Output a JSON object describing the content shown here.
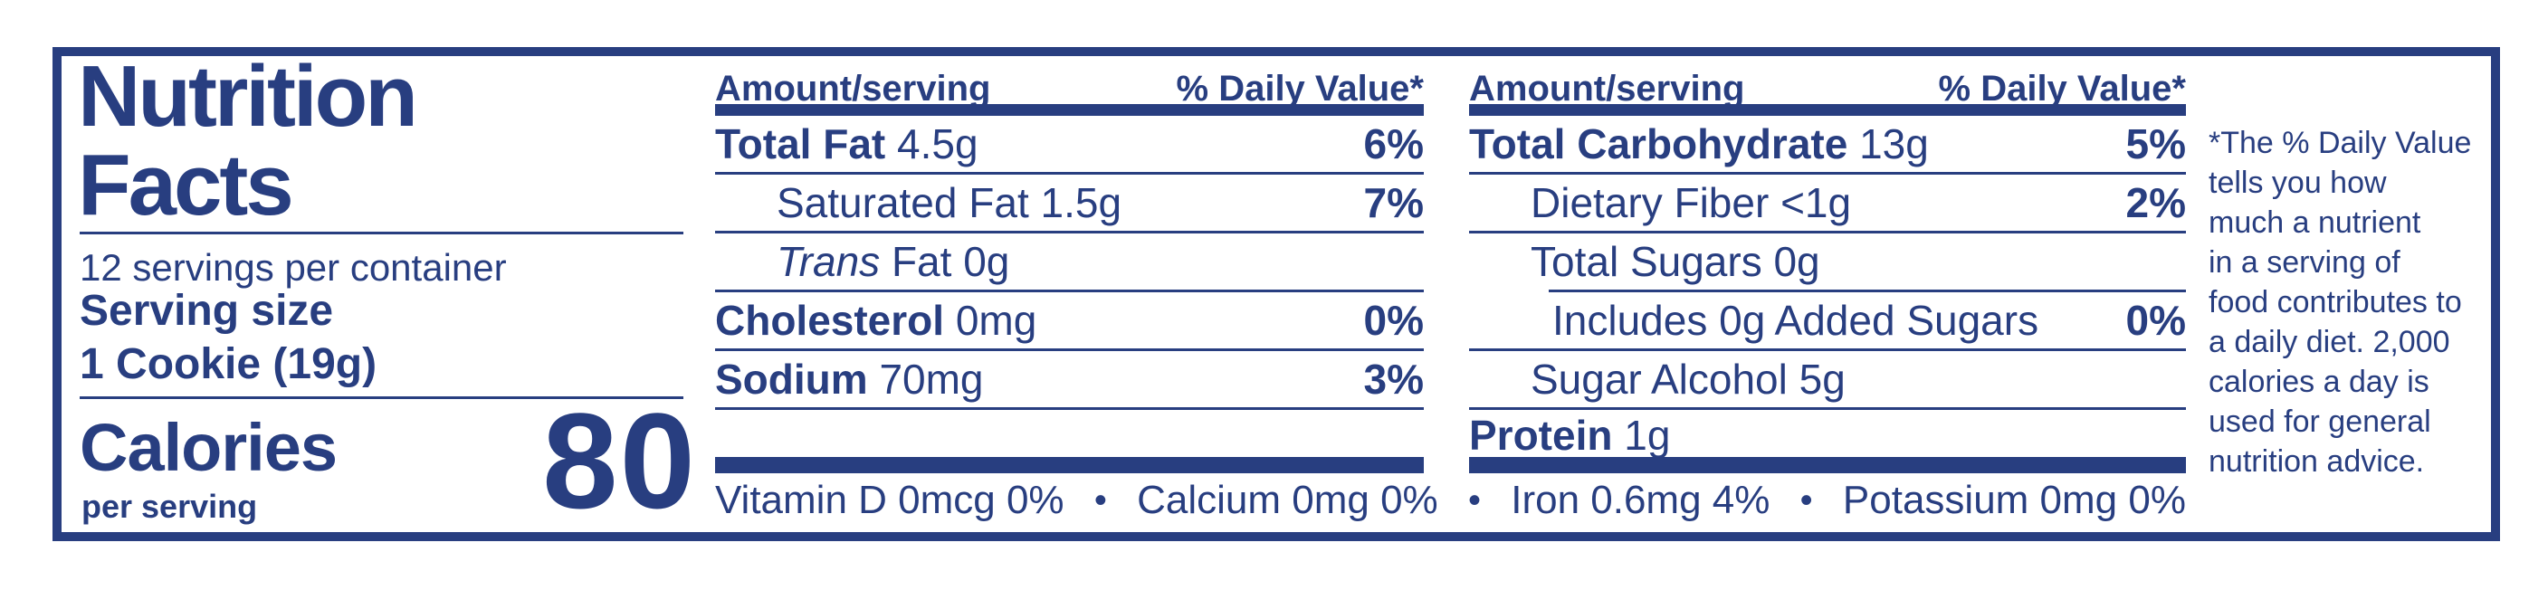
{
  "colors": {
    "navy": "#283e80",
    "background": "#ffffff"
  },
  "label": {
    "title_line1": "Nutrition",
    "title_line2": "Facts",
    "servings_per_container": "12 servings per container",
    "serving_size_label": "Serving size",
    "serving_size_value": "1 Cookie (19g)",
    "calories_label": "Calories",
    "calories_sublabel": "per serving",
    "calories_value": "80"
  },
  "columns": [
    {
      "header_amount": "Amount/serving",
      "header_dv": "% Daily Value*",
      "rows": [
        {
          "parts": [
            {
              "text": "Total Fat",
              "bold": true
            },
            {
              "text": " 4.5g"
            }
          ],
          "dv": "6%",
          "indent": 0,
          "sep": "full"
        },
        {
          "parts": [
            {
              "text": "Saturated Fat 1.5g"
            }
          ],
          "dv": "7%",
          "indent": 1,
          "sep": "full"
        },
        {
          "parts": [
            {
              "text": "Trans",
              "italic": true
            },
            {
              "text": " Fat 0g"
            }
          ],
          "dv": "",
          "indent": 1,
          "sep": "full"
        },
        {
          "parts": [
            {
              "text": "Cholesterol",
              "bold": true
            },
            {
              "text": " 0mg"
            }
          ],
          "dv": "0%",
          "indent": 0,
          "sep": "full"
        },
        {
          "parts": [
            {
              "text": "Sodium",
              "bold": true
            },
            {
              "text": " 70mg"
            }
          ],
          "dv": "3%",
          "indent": 0,
          "sep": "full"
        }
      ]
    },
    {
      "header_amount": "Amount/serving",
      "header_dv": "% Daily Value*",
      "rows": [
        {
          "parts": [
            {
              "text": "Total Carbohydrate",
              "bold": true
            },
            {
              "text": " 13g"
            }
          ],
          "dv": "5%",
          "indent": 0,
          "sep": "full"
        },
        {
          "parts": [
            {
              "text": "Dietary Fiber <1g"
            }
          ],
          "dv": "2%",
          "indent": 1,
          "sep": "full"
        },
        {
          "parts": [
            {
              "text": "Total Sugars 0g"
            }
          ],
          "dv": "",
          "indent": 1,
          "sep": "indent"
        },
        {
          "parts": [
            {
              "text": "Includes 0g Added Sugars"
            }
          ],
          "dv": "0%",
          "indent": 2,
          "sep": "full"
        },
        {
          "parts": [
            {
              "text": "Sugar Alcohol 5g"
            }
          ],
          "dv": "",
          "indent": 1,
          "sep": "full"
        },
        {
          "parts": [
            {
              "text": "Protein",
              "bold": true
            },
            {
              "text": " 1g"
            }
          ],
          "dv": "",
          "indent": 0,
          "sep": "none",
          "last": true
        }
      ]
    }
  ],
  "micronutrients": [
    "Vitamin D 0mcg 0%",
    "Calcium 0mg 0%",
    "Iron 0.6mg 4%",
    "Potassium 0mg 0%"
  ],
  "bullet": "•",
  "footnote": "*The % Daily Value\ntells you how\nmuch a nutrient\nin a serving of\nfood contributes to\na daily diet. 2,000\ncalories a day is\nused for general\nnutrition advice."
}
